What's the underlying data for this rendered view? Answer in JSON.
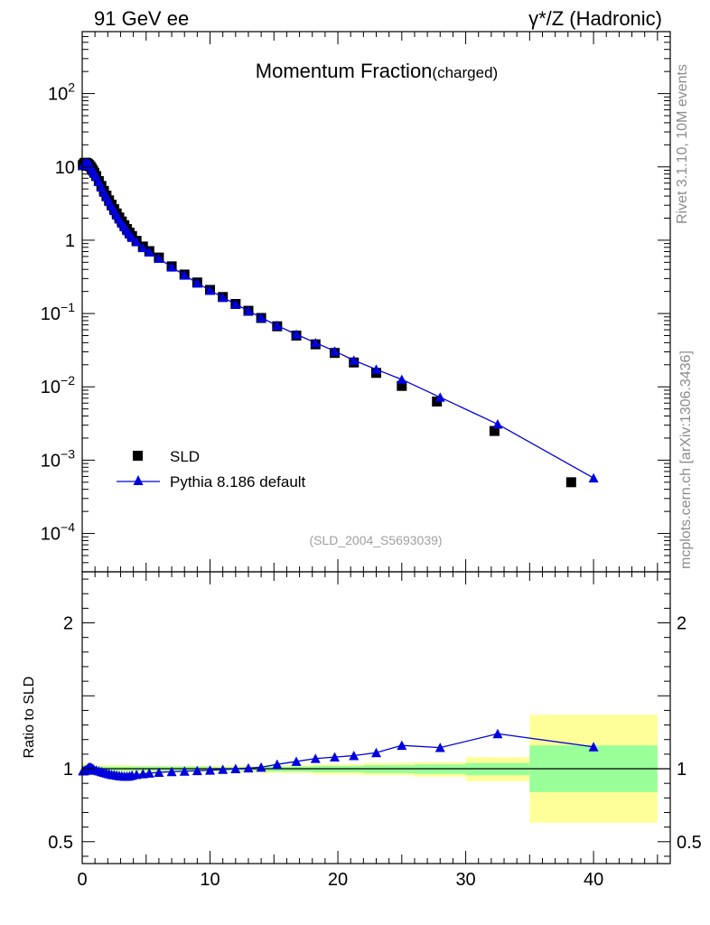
{
  "header": {
    "left": "91 GeV ee",
    "right": "γ*/Z (Hadronic)"
  },
  "side_labels": {
    "rivet": "Rivet 3.1.10,  10M events",
    "mcplots": "mcplots.cern.ch [arXiv:1306.3436]"
  },
  "chart_data": [
    {
      "type": "scatter",
      "title": "Momentum Fraction",
      "title_suffix": "(charged)",
      "watermark": "(SLD_2004_S5693039)",
      "xlim": [
        0,
        46
      ],
      "ylim": [
        3e-05,
        700
      ],
      "y_scale": "log",
      "x_ticks": [
        0,
        10,
        20,
        30,
        40
      ],
      "y_ticks": [
        {
          "value": 100,
          "base": "10",
          "exp": "2"
        },
        {
          "value": 10,
          "base": "10",
          "exp": ""
        },
        {
          "value": 1,
          "base": "1",
          "exp": ""
        },
        {
          "value": 0.1,
          "base": "10",
          "exp": "−1"
        },
        {
          "value": 0.01,
          "base": "10",
          "exp": "−2"
        },
        {
          "value": 0.001,
          "base": "10",
          "exp": "−3"
        },
        {
          "value": 0.0001,
          "base": "10",
          "exp": "−4"
        }
      ],
      "legend_position": "lower-left",
      "series": [
        {
          "name": "SLD",
          "marker": "square",
          "color": "#000000",
          "x": [
            0.05,
            0.15,
            0.25,
            0.35,
            0.45,
            0.55,
            0.65,
            0.75,
            0.85,
            0.95,
            1.1,
            1.3,
            1.5,
            1.7,
            1.9,
            2.1,
            2.3,
            2.5,
            2.7,
            2.9,
            3.1,
            3.3,
            3.5,
            3.7,
            3.9,
            4.25,
            4.75,
            5.25,
            6.0,
            7.0,
            8.0,
            9.0,
            10.0,
            11.0,
            12.0,
            13.0,
            14.0,
            15.25,
            16.75,
            18.25,
            19.75,
            21.25,
            23.0,
            25.0,
            27.75,
            32.25,
            38.25
          ],
          "y": [
            10.6,
            11.2,
            11.4,
            11.3,
            11.0,
            10.6,
            10.1,
            9.5,
            8.9,
            8.3,
            7.5,
            6.4,
            5.5,
            4.7,
            4.05,
            3.5,
            3.05,
            2.65,
            2.32,
            2.04,
            1.8,
            1.6,
            1.42,
            1.27,
            1.14,
            0.98,
            0.82,
            0.71,
            0.58,
            0.44,
            0.34,
            0.265,
            0.21,
            0.168,
            0.135,
            0.109,
            0.087,
            0.067,
            0.05,
            0.038,
            0.029,
            0.0215,
            0.0155,
            0.0103,
            0.0063,
            0.0025,
            0.0005
          ]
        },
        {
          "name": "Pythia 8.186 default",
          "marker": "triangle",
          "color": "#0000dd",
          "x": [
            0.05,
            0.15,
            0.25,
            0.35,
            0.45,
            0.55,
            0.65,
            0.75,
            0.85,
            0.95,
            1.1,
            1.3,
            1.5,
            1.7,
            1.9,
            2.1,
            2.3,
            2.5,
            2.7,
            2.9,
            3.1,
            3.3,
            3.5,
            3.7,
            3.9,
            4.25,
            4.75,
            5.25,
            6.0,
            7.0,
            8.0,
            9.0,
            10.0,
            11.0,
            12.0,
            13.0,
            14.0,
            15.25,
            16.75,
            18.25,
            19.75,
            21.25,
            23.0,
            25.0,
            28.0,
            32.5,
            40.0
          ],
          "y": [
            10.4,
            11.0,
            11.3,
            11.3,
            11.1,
            10.8,
            10.3,
            9.6,
            8.9,
            8.2,
            7.4,
            6.3,
            5.3,
            4.5,
            3.9,
            3.36,
            2.92,
            2.53,
            2.2,
            1.94,
            1.71,
            1.52,
            1.35,
            1.21,
            1.09,
            0.95,
            0.79,
            0.69,
            0.565,
            0.43,
            0.333,
            0.26,
            0.207,
            0.166,
            0.134,
            0.109,
            0.088,
            0.0685,
            0.052,
            0.0399,
            0.0307,
            0.023,
            0.0173,
            0.0126,
            0.0072,
            0.0031,
            0.00057
          ]
        }
      ]
    },
    {
      "type": "line",
      "ylabel": "Ratio to SLD",
      "xlim": [
        0,
        46
      ],
      "ylim": [
        0.35,
        2.35
      ],
      "x_ticks": [
        0,
        10,
        20,
        30,
        40
      ],
      "y_ticks": [
        {
          "value": 0.5,
          "label": "0.5"
        },
        {
          "value": 1,
          "label": "1"
        },
        {
          "value": 2,
          "label": "2"
        }
      ],
      "bands": [
        {
          "x0": 0,
          "x1": 1,
          "in_lo": 0.975,
          "in_hi": 1.025,
          "out_lo": 0.96,
          "out_hi": 1.04
        },
        {
          "x0": 1,
          "x1": 4,
          "in_lo": 0.985,
          "in_hi": 1.015,
          "out_lo": 0.975,
          "out_hi": 1.025
        },
        {
          "x0": 4,
          "x1": 10,
          "in_lo": 0.985,
          "in_hi": 1.015,
          "out_lo": 0.975,
          "out_hi": 1.02
        },
        {
          "x0": 10,
          "x1": 14,
          "in_lo": 0.985,
          "in_hi": 1.01,
          "out_lo": 0.975,
          "out_hi": 1.02
        },
        {
          "x0": 14,
          "x1": 18,
          "in_lo": 0.98,
          "in_hi": 1.015,
          "out_lo": 0.97,
          "out_hi": 1.025
        },
        {
          "x0": 18,
          "x1": 22,
          "in_lo": 0.975,
          "in_hi": 1.02,
          "out_lo": 0.96,
          "out_hi": 1.03
        },
        {
          "x0": 22,
          "x1": 26,
          "in_lo": 0.97,
          "in_hi": 1.025,
          "out_lo": 0.955,
          "out_hi": 1.04
        },
        {
          "x0": 26,
          "x1": 30,
          "in_lo": 0.965,
          "in_hi": 1.03,
          "out_lo": 0.945,
          "out_hi": 1.045
        },
        {
          "x0": 30,
          "x1": 35,
          "in_lo": 0.955,
          "in_hi": 1.04,
          "out_lo": 0.915,
          "out_hi": 1.08
        },
        {
          "x0": 35,
          "x1": 45,
          "in_lo": 0.84,
          "in_hi": 1.16,
          "out_lo": 0.63,
          "out_hi": 1.37
        }
      ],
      "series": [
        {
          "name": "Pythia 8.186 default",
          "marker": "triangle",
          "color": "#0000dd",
          "x": [
            0.05,
            0.15,
            0.25,
            0.35,
            0.45,
            0.55,
            0.65,
            0.75,
            0.85,
            0.95,
            1.1,
            1.3,
            1.5,
            1.7,
            1.9,
            2.1,
            2.3,
            2.5,
            2.7,
            2.9,
            3.1,
            3.3,
            3.5,
            3.7,
            3.9,
            4.25,
            4.75,
            5.25,
            6.0,
            7.0,
            8.0,
            9.0,
            10.0,
            11.0,
            12.0,
            13.0,
            14.0,
            15.25,
            16.75,
            18.25,
            19.75,
            21.25,
            23.0,
            25.0,
            28.0,
            32.5,
            40.0
          ],
          "y": [
            0.985,
            0.985,
            0.99,
            0.995,
            1.005,
            1.01,
            1.01,
            1.005,
            1.0,
            0.99,
            0.99,
            0.985,
            0.98,
            0.975,
            0.97,
            0.965,
            0.96,
            0.958,
            0.955,
            0.952,
            0.95,
            0.948,
            0.948,
            0.95,
            0.955,
            0.96,
            0.965,
            0.97,
            0.975,
            0.98,
            0.983,
            0.987,
            0.99,
            0.995,
            1.0,
            1.005,
            1.01,
            1.03,
            1.05,
            1.07,
            1.08,
            1.09,
            1.11,
            1.16,
            1.145,
            1.24,
            1.15
          ]
        }
      ]
    }
  ],
  "legend": [
    {
      "label": "SLD",
      "marker": "square",
      "color": "#000000"
    },
    {
      "label": "Pythia 8.186 default",
      "marker": "triangle",
      "color": "#0000dd"
    }
  ]
}
